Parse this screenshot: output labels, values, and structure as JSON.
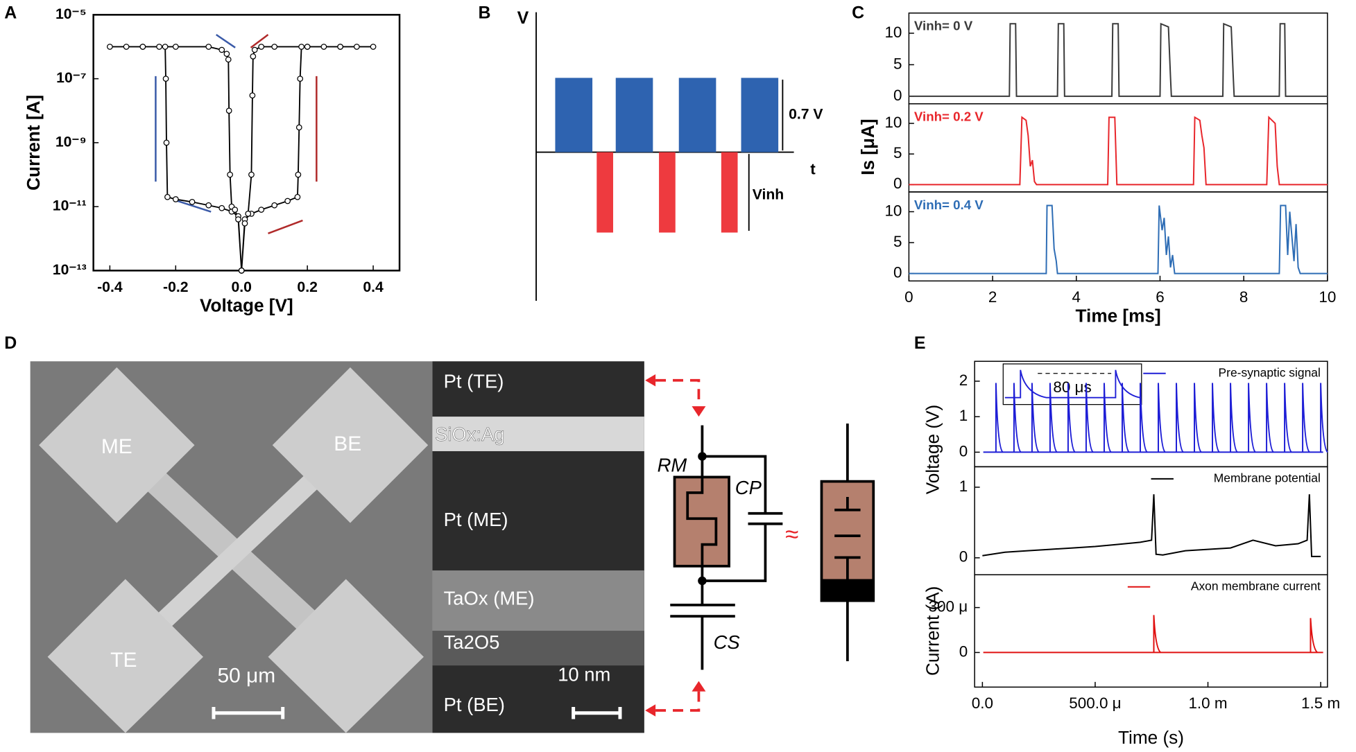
{
  "panel_labels": [
    "A",
    "B",
    "C",
    "D",
    "E"
  ],
  "chart_data": [
    {
      "type": "line",
      "log_y": true,
      "marker": "circle",
      "xlabel": "Voltage [V]",
      "ylabel": "Current [A]",
      "xlim": [
        -0.45,
        0.48
      ],
      "ylim": [
        1e-13,
        1e-05
      ],
      "xticks": [
        -0.4,
        -0.2,
        {
          "value": 0,
          "label": "0.0"
        },
        0.2,
        0.4
      ],
      "yticks": [
        {
          "value": 1e-05,
          "label": "10⁻⁵"
        },
        {
          "value": 1e-07,
          "label": "10⁻⁷"
        },
        {
          "value": 1e-09,
          "label": "10⁻⁹"
        },
        {
          "value": 1e-11,
          "label": "10⁻¹¹"
        },
        {
          "value": 1e-13,
          "label": "10⁻¹³"
        }
      ],
      "series": [
        {
          "color": "#000000",
          "x": [
            0,
            0.01,
            0.03,
            0.06,
            0.1,
            0.14,
            0.17,
            0.172,
            0.175,
            0.178,
            0.182,
            0.2,
            0.25,
            0.3,
            0.35,
            0.4,
            0.3,
            0.2,
            0.1,
            0.06,
            0.04,
            0.035,
            0.033,
            0.03,
            0.02,
            0.01,
            0
          ],
          "values": [
            1e-13,
            4e-12,
            6e-12,
            8e-12,
            1.1e-11,
            1.5e-11,
            2e-11,
            1e-10,
            3e-09,
            1e-07,
            1e-06,
            1e-06,
            1e-06,
            1e-06,
            1e-06,
            1e-06,
            1e-06,
            1e-06,
            1e-06,
            1e-06,
            8e-07,
            5e-07,
            3e-08,
            1e-10,
            6e-12,
            3e-12,
            1e-13
          ]
        },
        {
          "color": "#000000",
          "x": [
            0,
            -0.01,
            -0.03,
            -0.06,
            -0.1,
            -0.15,
            -0.2,
            -0.225,
            -0.228,
            -0.23,
            -0.232,
            -0.25,
            -0.3,
            -0.35,
            -0.4,
            -0.3,
            -0.2,
            -0.1,
            -0.06,
            -0.045,
            -0.04,
            -0.038,
            -0.035,
            -0.03,
            -0.02,
            -0.01,
            0
          ],
          "values": [
            1e-13,
            5e-12,
            7e-12,
            9e-12,
            1.1e-11,
            1.4e-11,
            1.7e-11,
            2e-11,
            1e-09,
            1e-07,
            1e-06,
            1e-06,
            1e-06,
            1e-06,
            1e-06,
            1e-06,
            1e-06,
            1e-06,
            8e-07,
            6e-07,
            4e-07,
            1e-08,
            1e-10,
            1e-11,
            8e-12,
            4e-12,
            1e-13
          ]
        }
      ]
    },
    {
      "type": "line",
      "annotation": "Vinh= 0 V",
      "ylabel": "Is [μA]",
      "xlim": [
        0,
        10
      ],
      "ylim": [
        -1.2,
        13.2
      ],
      "yticks": [
        0,
        5,
        10
      ],
      "series": [
        {
          "color": "#3a3a3a",
          "x": [
            0,
            2.4,
            2.42,
            2.55,
            2.57,
            3.55,
            3.57,
            3.7,
            3.72,
            4.85,
            4.87,
            5.0,
            5.02,
            6.0,
            6.02,
            6.2,
            6.25,
            6.27,
            7.5,
            7.52,
            7.7,
            7.75,
            7.77,
            8.85,
            8.87,
            8.98,
            9.0,
            10
          ],
          "values": [
            0,
            0,
            11.5,
            11.5,
            0,
            0,
            11.5,
            11.5,
            0,
            0,
            11.5,
            11.5,
            0,
            0,
            11.5,
            11,
            3,
            0,
            0,
            11.5,
            11,
            3,
            0,
            0,
            11.5,
            11.5,
            0,
            0
          ]
        }
      ]
    },
    {
      "type": "line",
      "annotation": "Vinh= 0.2 V",
      "xlim": [
        0,
        10
      ],
      "ylim": [
        -1.2,
        13.2
      ],
      "yticks": [
        0,
        5,
        10
      ],
      "series": [
        {
          "color": "#e8262b",
          "x": [
            0,
            2.65,
            2.7,
            2.8,
            2.85,
            2.9,
            2.95,
            3.0,
            3.05,
            4.75,
            4.78,
            4.92,
            4.97,
            6.8,
            6.83,
            6.95,
            7.0,
            7.05,
            7.1,
            8.55,
            8.6,
            8.75,
            8.8,
            8.85,
            10
          ],
          "values": [
            0,
            0,
            11,
            10.5,
            8,
            3,
            4,
            0.5,
            0,
            0,
            11,
            11,
            0,
            0,
            11,
            10.5,
            8,
            6,
            0,
            0,
            11,
            10,
            3,
            0,
            0
          ]
        }
      ]
    },
    {
      "type": "line",
      "annotation": "Vinh= 0.4 V",
      "xlabel": "Time [ms]",
      "xlim": [
        0,
        10
      ],
      "ylim": [
        -1.2,
        13.2
      ],
      "xticks": [
        0,
        2,
        4,
        6,
        8,
        10
      ],
      "yticks": [
        0,
        5,
        10
      ],
      "series": [
        {
          "color": "#2e6db5",
          "x": [
            0,
            3.28,
            3.3,
            3.42,
            3.47,
            3.52,
            3.55,
            5.95,
            5.98,
            6.05,
            6.1,
            6.15,
            6.2,
            6.25,
            6.3,
            6.35,
            8.85,
            8.88,
            9.0,
            9.05,
            9.1,
            9.2,
            9.25,
            9.3,
            9.35,
            10
          ],
          "values": [
            0,
            0,
            11,
            11,
            4,
            2,
            0,
            0,
            11,
            7,
            9,
            3,
            6,
            1,
            3,
            0,
            0,
            11,
            11,
            3,
            10,
            2,
            8,
            1,
            0,
            0
          ]
        }
      ]
    },
    {
      "type": "spikes",
      "annotation": "80 μs",
      "ylabel": "Voltage (V)",
      "legend": "upper right",
      "xlim": [
        -3.45e-05,
        0.00153
      ],
      "ylim": [
        -0.41,
        2.56
      ],
      "yticks": [
        0,
        1,
        2
      ],
      "series": [
        {
          "name": "Pre-synaptic signal",
          "color": "#1f1fd6",
          "x": [
            6e-05,
            0.00014,
            0.00022,
            0.0003,
            0.00038,
            0.00046,
            0.00054,
            0.00062,
            0.0007,
            0.00078,
            0.00086,
            0.00094,
            0.00102,
            0.0011,
            0.00118,
            0.00126,
            0.00134,
            0.00142,
            0.0015
          ],
          "values": [
            1.95,
            1.95,
            1.95,
            1.95,
            1.95,
            1.95,
            1.95,
            1.95,
            1.95,
            1.95,
            1.95,
            1.95,
            1.95,
            1.95,
            1.95,
            1.95,
            1.95,
            1.95,
            1.95
          ]
        }
      ]
    },
    {
      "type": "line",
      "legend": "upper right",
      "xlim": [
        -3.45e-05,
        0.00153
      ],
      "ylim": [
        -0.24,
        1.29
      ],
      "yticks": [
        0,
        1
      ],
      "series": [
        {
          "name": "Membrane potential",
          "color": "#000000",
          "x": [
            0,
            0.0001,
            0.0002,
            0.0003,
            0.0004,
            0.0005,
            0.0006,
            0.0007,
            0.00075,
            0.00076,
            0.00077,
            0.0008,
            0.0009,
            0.001,
            0.0011,
            0.0012,
            0.0013,
            0.0014,
            0.00144,
            0.00145,
            0.00146,
            0.0015
          ],
          "values": [
            0.03,
            0.08,
            0.1,
            0.12,
            0.14,
            0.16,
            0.19,
            0.22,
            0.25,
            0.9,
            0.05,
            0.04,
            0.1,
            0.12,
            0.14,
            0.25,
            0.17,
            0.2,
            0.25,
            0.9,
            0.02,
            0.02
          ]
        }
      ]
    },
    {
      "type": "spikes",
      "xlabel": "Time (s)",
      "ylabel": "Current (A)",
      "legend": "upper right",
      "xlim": [
        -3.45e-05,
        0.00153
      ],
      "ylim": [
        -0.000231,
        0.000519
      ],
      "xticks": [
        {
          "value": 0,
          "label": "0.0"
        },
        {
          "value": 0.0005,
          "label": "500.0 μ"
        },
        {
          "value": 0.001,
          "label": "1.0 m"
        },
        {
          "value": 0.0015,
          "label": "1.5 m"
        }
      ],
      "yticks": [
        0,
        {
          "value": 0.0003,
          "label": "300 μ"
        }
      ],
      "series": [
        {
          "name": "Axon membrane current",
          "color": "#e01010",
          "x": [
            0.00076,
            0.001455
          ],
          "values": [
            0.00025,
            0.00023
          ]
        }
      ]
    }
  ],
  "diagram_b": {
    "v_axis": "V",
    "t_axis": "t",
    "amplitude": "0.7 V",
    "inhibition": "Vinh"
  },
  "figure_d": {
    "pads": [
      "ME",
      "BE",
      "TE"
    ],
    "sem_scale": "50 μm",
    "layers": [
      "Pt (TE)",
      "SiOx:Ag",
      "Pt (ME)",
      "TaOx (ME)",
      "Ta2O5",
      "Pt (BE)"
    ],
    "tem_scale": "10 nm",
    "circuit": [
      "RM",
      "CP",
      "CS",
      "≈"
    ]
  }
}
